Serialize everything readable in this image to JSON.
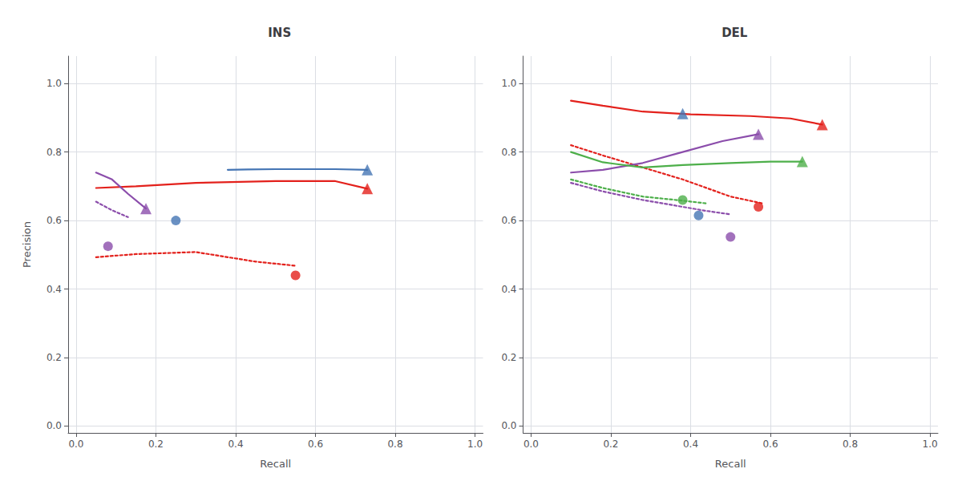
{
  "chart_data": [
    {
      "type": "line",
      "title": "INS",
      "x_label": "Recall",
      "y_label": "Precision",
      "xlim": [
        -0.02,
        1.02
      ],
      "ylim": [
        -0.02,
        1.08
      ],
      "xticks": [
        {
          "value": 0,
          "label": "0.0"
        },
        0.2,
        0.4,
        0.6,
        0.8,
        {
          "value": 1,
          "label": "1.0"
        }
      ],
      "yticks": [
        {
          "value": 0,
          "label": "0.0"
        },
        0.2,
        0.4,
        0.6,
        0.8,
        {
          "value": 1,
          "label": "1.0"
        }
      ],
      "grid": true,
      "series": [
        {
          "type": "line",
          "line_style": "solid",
          "color": "#E3211C",
          "x": [
            0.05,
            0.15,
            0.3,
            0.5,
            0.65,
            0.73
          ],
          "values": [
            0.695,
            0.7,
            0.71,
            0.715,
            0.715,
            0.693
          ]
        },
        {
          "type": "line",
          "line_style": "dotted",
          "color": "#E3211C",
          "x": [
            0.05,
            0.15,
            0.3,
            0.45,
            0.55
          ],
          "values": [
            0.493,
            0.502,
            0.508,
            0.48,
            0.468
          ]
        },
        {
          "type": "scatter",
          "marker": "triangle",
          "color": "#E3211C",
          "x": [
            0.73
          ],
          "values": [
            0.693
          ]
        },
        {
          "type": "scatter",
          "marker": "circle",
          "color": "#E3211C",
          "x": [
            0.55
          ],
          "values": [
            0.44
          ]
        },
        {
          "type": "line",
          "line_style": "solid",
          "color": "#4575B4",
          "x": [
            0.38,
            0.43,
            0.5,
            0.55,
            0.6,
            0.65,
            0.73
          ],
          "values": [
            0.748,
            0.749,
            0.75,
            0.75,
            0.75,
            0.75,
            0.748
          ]
        },
        {
          "type": "scatter",
          "marker": "triangle",
          "color": "#4575B4",
          "x": [
            0.73
          ],
          "values": [
            0.748
          ]
        },
        {
          "type": "scatter",
          "marker": "circle",
          "color": "#4575B4",
          "x": [
            0.25
          ],
          "values": [
            0.6
          ]
        },
        {
          "type": "line",
          "line_style": "solid",
          "color": "#8B4DAB",
          "x": [
            0.05,
            0.09,
            0.13,
            0.175
          ],
          "values": [
            0.74,
            0.72,
            0.678,
            0.635
          ]
        },
        {
          "type": "line",
          "line_style": "dotted",
          "color": "#8B4DAB",
          "x": [
            0.05,
            0.09,
            0.13
          ],
          "values": [
            0.655,
            0.63,
            0.61
          ]
        },
        {
          "type": "scatter",
          "marker": "triangle",
          "color": "#8B4DAB",
          "x": [
            0.175
          ],
          "values": [
            0.635
          ]
        },
        {
          "type": "scatter",
          "marker": "circle",
          "color": "#8B4DAB",
          "x": [
            0.08
          ],
          "values": [
            0.525
          ]
        }
      ]
    },
    {
      "type": "line",
      "title": "DEL",
      "x_label": "Recall",
      "xlim": [
        -0.02,
        1.02
      ],
      "ylim": [
        -0.02,
        1.08
      ],
      "xticks": [
        {
          "value": 0,
          "label": "0.0"
        },
        0.2,
        0.4,
        0.6,
        0.8,
        {
          "value": 1,
          "label": "1.0"
        }
      ],
      "yticks": [
        {
          "value": 0,
          "label": "0.0"
        },
        0.2,
        0.4,
        0.6,
        0.8,
        {
          "value": 1,
          "label": "1.0"
        }
      ],
      "grid": true,
      "series": [
        {
          "type": "line",
          "line_style": "solid",
          "color": "#E3211C",
          "x": [
            0.1,
            0.18,
            0.28,
            0.4,
            0.55,
            0.65,
            0.73
          ],
          "values": [
            0.95,
            0.935,
            0.918,
            0.91,
            0.905,
            0.898,
            0.88
          ]
        },
        {
          "type": "line",
          "line_style": "dotted",
          "color": "#E3211C",
          "x": [
            0.1,
            0.18,
            0.28,
            0.38,
            0.5,
            0.58
          ],
          "values": [
            0.82,
            0.79,
            0.755,
            0.72,
            0.67,
            0.65
          ]
        },
        {
          "type": "scatter",
          "marker": "triangle",
          "color": "#E3211C",
          "x": [
            0.73
          ],
          "values": [
            0.88
          ]
        },
        {
          "type": "scatter",
          "marker": "circle",
          "color": "#E3211C",
          "x": [
            0.57
          ],
          "values": [
            0.64
          ]
        },
        {
          "type": "scatter",
          "marker": "triangle",
          "color": "#4575B4",
          "x": [
            0.38
          ],
          "values": [
            0.912
          ]
        },
        {
          "type": "scatter",
          "marker": "circle",
          "color": "#4575B4",
          "x": [
            0.42
          ],
          "values": [
            0.615
          ]
        },
        {
          "type": "line",
          "line_style": "solid",
          "color": "#8B4DAB",
          "x": [
            0.1,
            0.18,
            0.28,
            0.38,
            0.48,
            0.57
          ],
          "values": [
            0.74,
            0.748,
            0.768,
            0.8,
            0.832,
            0.852
          ]
        },
        {
          "type": "line",
          "line_style": "dotted",
          "color": "#8B4DAB",
          "x": [
            0.1,
            0.18,
            0.28,
            0.38,
            0.44,
            0.5
          ],
          "values": [
            0.71,
            0.685,
            0.66,
            0.64,
            0.628,
            0.618
          ]
        },
        {
          "type": "scatter",
          "marker": "triangle",
          "color": "#8B4DAB",
          "x": [
            0.57
          ],
          "values": [
            0.852
          ]
        },
        {
          "type": "scatter",
          "marker": "circle",
          "color": "#8B4DAB",
          "x": [
            0.5
          ],
          "values": [
            0.552
          ]
        },
        {
          "type": "line",
          "line_style": "solid",
          "color": "#4DAF4A",
          "x": [
            0.1,
            0.18,
            0.28,
            0.38,
            0.5,
            0.6,
            0.68
          ],
          "values": [
            0.8,
            0.77,
            0.755,
            0.762,
            0.768,
            0.772,
            0.772
          ]
        },
        {
          "type": "line",
          "line_style": "dotted",
          "color": "#4DAF4A",
          "x": [
            0.1,
            0.18,
            0.28,
            0.38,
            0.44
          ],
          "values": [
            0.72,
            0.695,
            0.67,
            0.658,
            0.65
          ]
        },
        {
          "type": "scatter",
          "marker": "triangle",
          "color": "#4DAF4A",
          "x": [
            0.68
          ],
          "values": [
            0.772
          ]
        },
        {
          "type": "scatter",
          "marker": "circle",
          "color": "#4DAF4A",
          "x": [
            0.38
          ],
          "values": [
            0.66
          ]
        }
      ]
    }
  ]
}
